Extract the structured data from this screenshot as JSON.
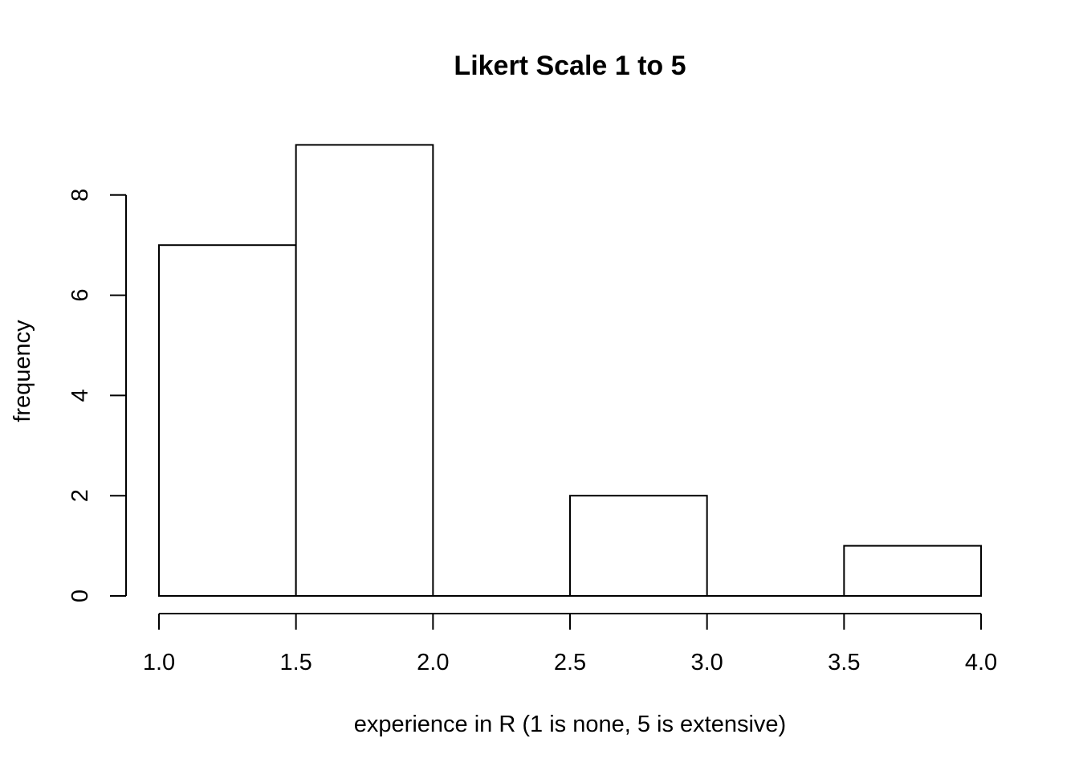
{
  "chart_data": {
    "type": "bar",
    "title": "Likert Scale 1 to 5",
    "xlabel": "experience in R (1 is none, 5 is extensive)",
    "ylabel": "frequency",
    "bins": [
      {
        "start": 1.0,
        "end": 1.5,
        "count": 7
      },
      {
        "start": 1.5,
        "end": 2.0,
        "count": 9
      },
      {
        "start": 2.0,
        "end": 2.5,
        "count": 0
      },
      {
        "start": 2.5,
        "end": 3.0,
        "count": 2
      },
      {
        "start": 3.0,
        "end": 3.5,
        "count": 0
      },
      {
        "start": 3.5,
        "end": 4.0,
        "count": 1
      }
    ],
    "xlim": [
      1.0,
      4.0
    ],
    "ylim": [
      0,
      9
    ],
    "x_ticks": [
      "1.0",
      "1.5",
      "2.0",
      "2.5",
      "3.0",
      "3.5",
      "4.0"
    ],
    "y_ticks": [
      "0",
      "2",
      "4",
      "6",
      "8"
    ],
    "grid": false,
    "bar_fill": "#ffffff",
    "bar_stroke": "#000000"
  }
}
